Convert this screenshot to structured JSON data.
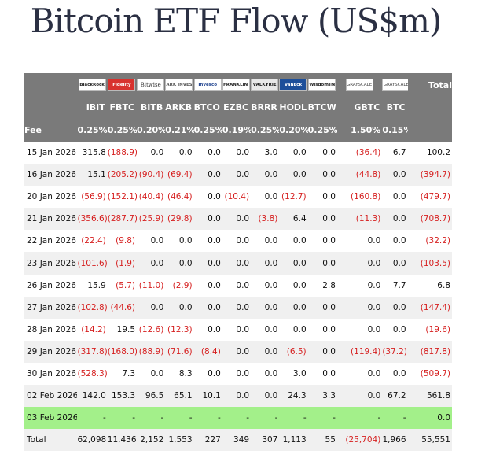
{
  "title": "Bitcoin ETF Flow (US$m)",
  "logos": [
    "BlackRock",
    "Fidelity",
    "Bitwise",
    "ARK INVEST",
    "Invesco",
    "FRANKLIN TEMPLETON",
    "VALKYRIE",
    "VanEck",
    "WisdomTree",
    "GRAYSCALE",
    "GRAYSCALE"
  ],
  "total_header": "Total",
  "tickers": [
    "IBIT",
    "FBTC",
    "BITB",
    "ARKB",
    "BTCO",
    "EZBC",
    "BRRR",
    "HODL",
    "BTCW",
    "GBTC",
    "BTC"
  ],
  "fee_label": "Fee",
  "fees": [
    "0.25%",
    "0.25%",
    "0.20%",
    "0.21%",
    "0.25%",
    "0.19%",
    "0.25%",
    "0.20%",
    "0.25%",
    "1.50%",
    "0.15%"
  ],
  "rows": [
    {
      "date": "15 Jan 2026",
      "values": [
        "315.8",
        "(188.9)",
        "0.0",
        "0.0",
        "0.0",
        "0.0",
        "3.0",
        "0.0",
        "0.0",
        "(36.4)",
        "6.7"
      ],
      "total": "100.2"
    },
    {
      "date": "16 Jan 2026",
      "values": [
        "15.1",
        "(205.2)",
        "(90.4)",
        "(69.4)",
        "0.0",
        "0.0",
        "0.0",
        "0.0",
        "0.0",
        "(44.8)",
        "0.0"
      ],
      "total": "(394.7)"
    },
    {
      "date": "20 Jan 2026",
      "values": [
        "(56.9)",
        "(152.1)",
        "(40.4)",
        "(46.4)",
        "0.0",
        "(10.4)",
        "0.0",
        "(12.7)",
        "0.0",
        "(160.8)",
        "0.0"
      ],
      "total": "(479.7)"
    },
    {
      "date": "21 Jan 2026",
      "values": [
        "(356.6)",
        "(287.7)",
        "(25.9)",
        "(29.8)",
        "0.0",
        "0.0",
        "(3.8)",
        "6.4",
        "0.0",
        "(11.3)",
        "0.0"
      ],
      "total": "(708.7)"
    },
    {
      "date": "22 Jan 2026",
      "values": [
        "(22.4)",
        "(9.8)",
        "0.0",
        "0.0",
        "0.0",
        "0.0",
        "0.0",
        "0.0",
        "0.0",
        "0.0",
        "0.0"
      ],
      "total": "(32.2)"
    },
    {
      "date": "23 Jan 2026",
      "values": [
        "(101.6)",
        "(1.9)",
        "0.0",
        "0.0",
        "0.0",
        "0.0",
        "0.0",
        "0.0",
        "0.0",
        "0.0",
        "0.0"
      ],
      "total": "(103.5)"
    },
    {
      "date": "26 Jan 2026",
      "values": [
        "15.9",
        "(5.7)",
        "(11.0)",
        "(2.9)",
        "0.0",
        "0.0",
        "0.0",
        "0.0",
        "2.8",
        "0.0",
        "7.7"
      ],
      "total": "6.8"
    },
    {
      "date": "27 Jan 2026",
      "values": [
        "(102.8)",
        "(44.6)",
        "0.0",
        "0.0",
        "0.0",
        "0.0",
        "0.0",
        "0.0",
        "0.0",
        "0.0",
        "0.0"
      ],
      "total": "(147.4)"
    },
    {
      "date": "28 Jan 2026",
      "values": [
        "(14.2)",
        "19.5",
        "(12.6)",
        "(12.3)",
        "0.0",
        "0.0",
        "0.0",
        "0.0",
        "0.0",
        "0.0",
        "0.0"
      ],
      "total": "(19.6)"
    },
    {
      "date": "29 Jan 2026",
      "values": [
        "(317.8)",
        "(168.0)",
        "(88.9)",
        "(71.6)",
        "(8.4)",
        "0.0",
        "0.0",
        "(6.5)",
        "0.0",
        "(119.4)",
        "(37.2)"
      ],
      "total": "(817.8)"
    },
    {
      "date": "30 Jan 2026",
      "values": [
        "(528.3)",
        "7.3",
        "0.0",
        "8.3",
        "0.0",
        "0.0",
        "0.0",
        "3.0",
        "0.0",
        "0.0",
        "0.0"
      ],
      "total": "(509.7)"
    },
    {
      "date": "02 Feb 2026",
      "values": [
        "142.0",
        "153.3",
        "96.5",
        "65.1",
        "10.1",
        "0.0",
        "0.0",
        "24.3",
        "3.3",
        "0.0",
        "67.2"
      ],
      "total": "561.8"
    },
    {
      "date": "03 Feb 2026",
      "values": [
        "-",
        "-",
        "-",
        "-",
        "-",
        "-",
        "-",
        "-",
        "-",
        "-",
        "-"
      ],
      "total": "0.0",
      "highlight": true
    }
  ],
  "total_row": {
    "label": "Total",
    "values": [
      "62,098",
      "11,436",
      "2,152",
      "1,553",
      "227",
      "349",
      "307",
      "1,113",
      "55",
      "(25,704)",
      "1,966"
    ],
    "total": "55,551"
  }
}
